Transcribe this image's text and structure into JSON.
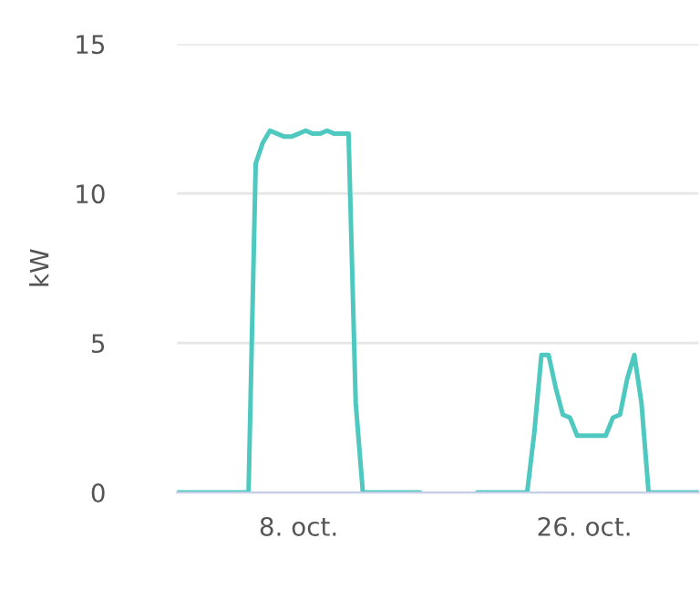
{
  "chart_data": {
    "type": "line",
    "ylabel": "kW",
    "ylim": [
      0,
      15
    ],
    "yticks": [
      0,
      5,
      10,
      15
    ],
    "grid": "y",
    "legend": false,
    "marker": "none",
    "line_style": "solid",
    "categories": [
      null,
      null,
      null,
      null,
      null,
      null,
      null,
      null,
      null,
      null,
      null,
      null,
      null,
      null,
      null,
      null,
      null,
      "8. oct.",
      null,
      null,
      null,
      null,
      null,
      null,
      null,
      null,
      null,
      null,
      null,
      null,
      null,
      null,
      null,
      null,
      null,
      null,
      null,
      null,
      null,
      null,
      null,
      null,
      null,
      null,
      null,
      null,
      null,
      null,
      null,
      null,
      null,
      null,
      null,
      null,
      null,
      null,
      null,
      "26. oct.",
      null,
      null,
      null,
      null,
      null,
      null,
      null,
      null,
      null,
      null,
      null,
      null,
      null,
      null,
      null,
      null
    ],
    "series": [
      {
        "color": "#4fc9bf",
        "values": [
          0,
          0,
          0,
          0,
          0,
          0,
          0,
          0,
          0,
          0,
          0,
          11.0,
          11.7,
          12.1,
          12.0,
          11.9,
          11.9,
          12.0,
          12.1,
          12.0,
          12.0,
          12.1,
          12.0,
          12.0,
          12.0,
          3,
          0,
          0,
          0,
          0,
          0,
          0,
          0,
          0,
          0,
          null,
          null,
          null,
          null,
          null,
          null,
          null,
          0,
          0,
          0,
          0,
          0,
          0,
          0,
          0,
          2,
          4.6,
          4.6,
          3.5,
          2.6,
          2.5,
          1.9,
          1.9,
          1.9,
          1.9,
          1.9,
          2.5,
          2.6,
          3.8,
          4.6,
          3,
          0,
          0,
          0,
          0,
          0,
          0,
          0,
          0
        ]
      }
    ]
  }
}
